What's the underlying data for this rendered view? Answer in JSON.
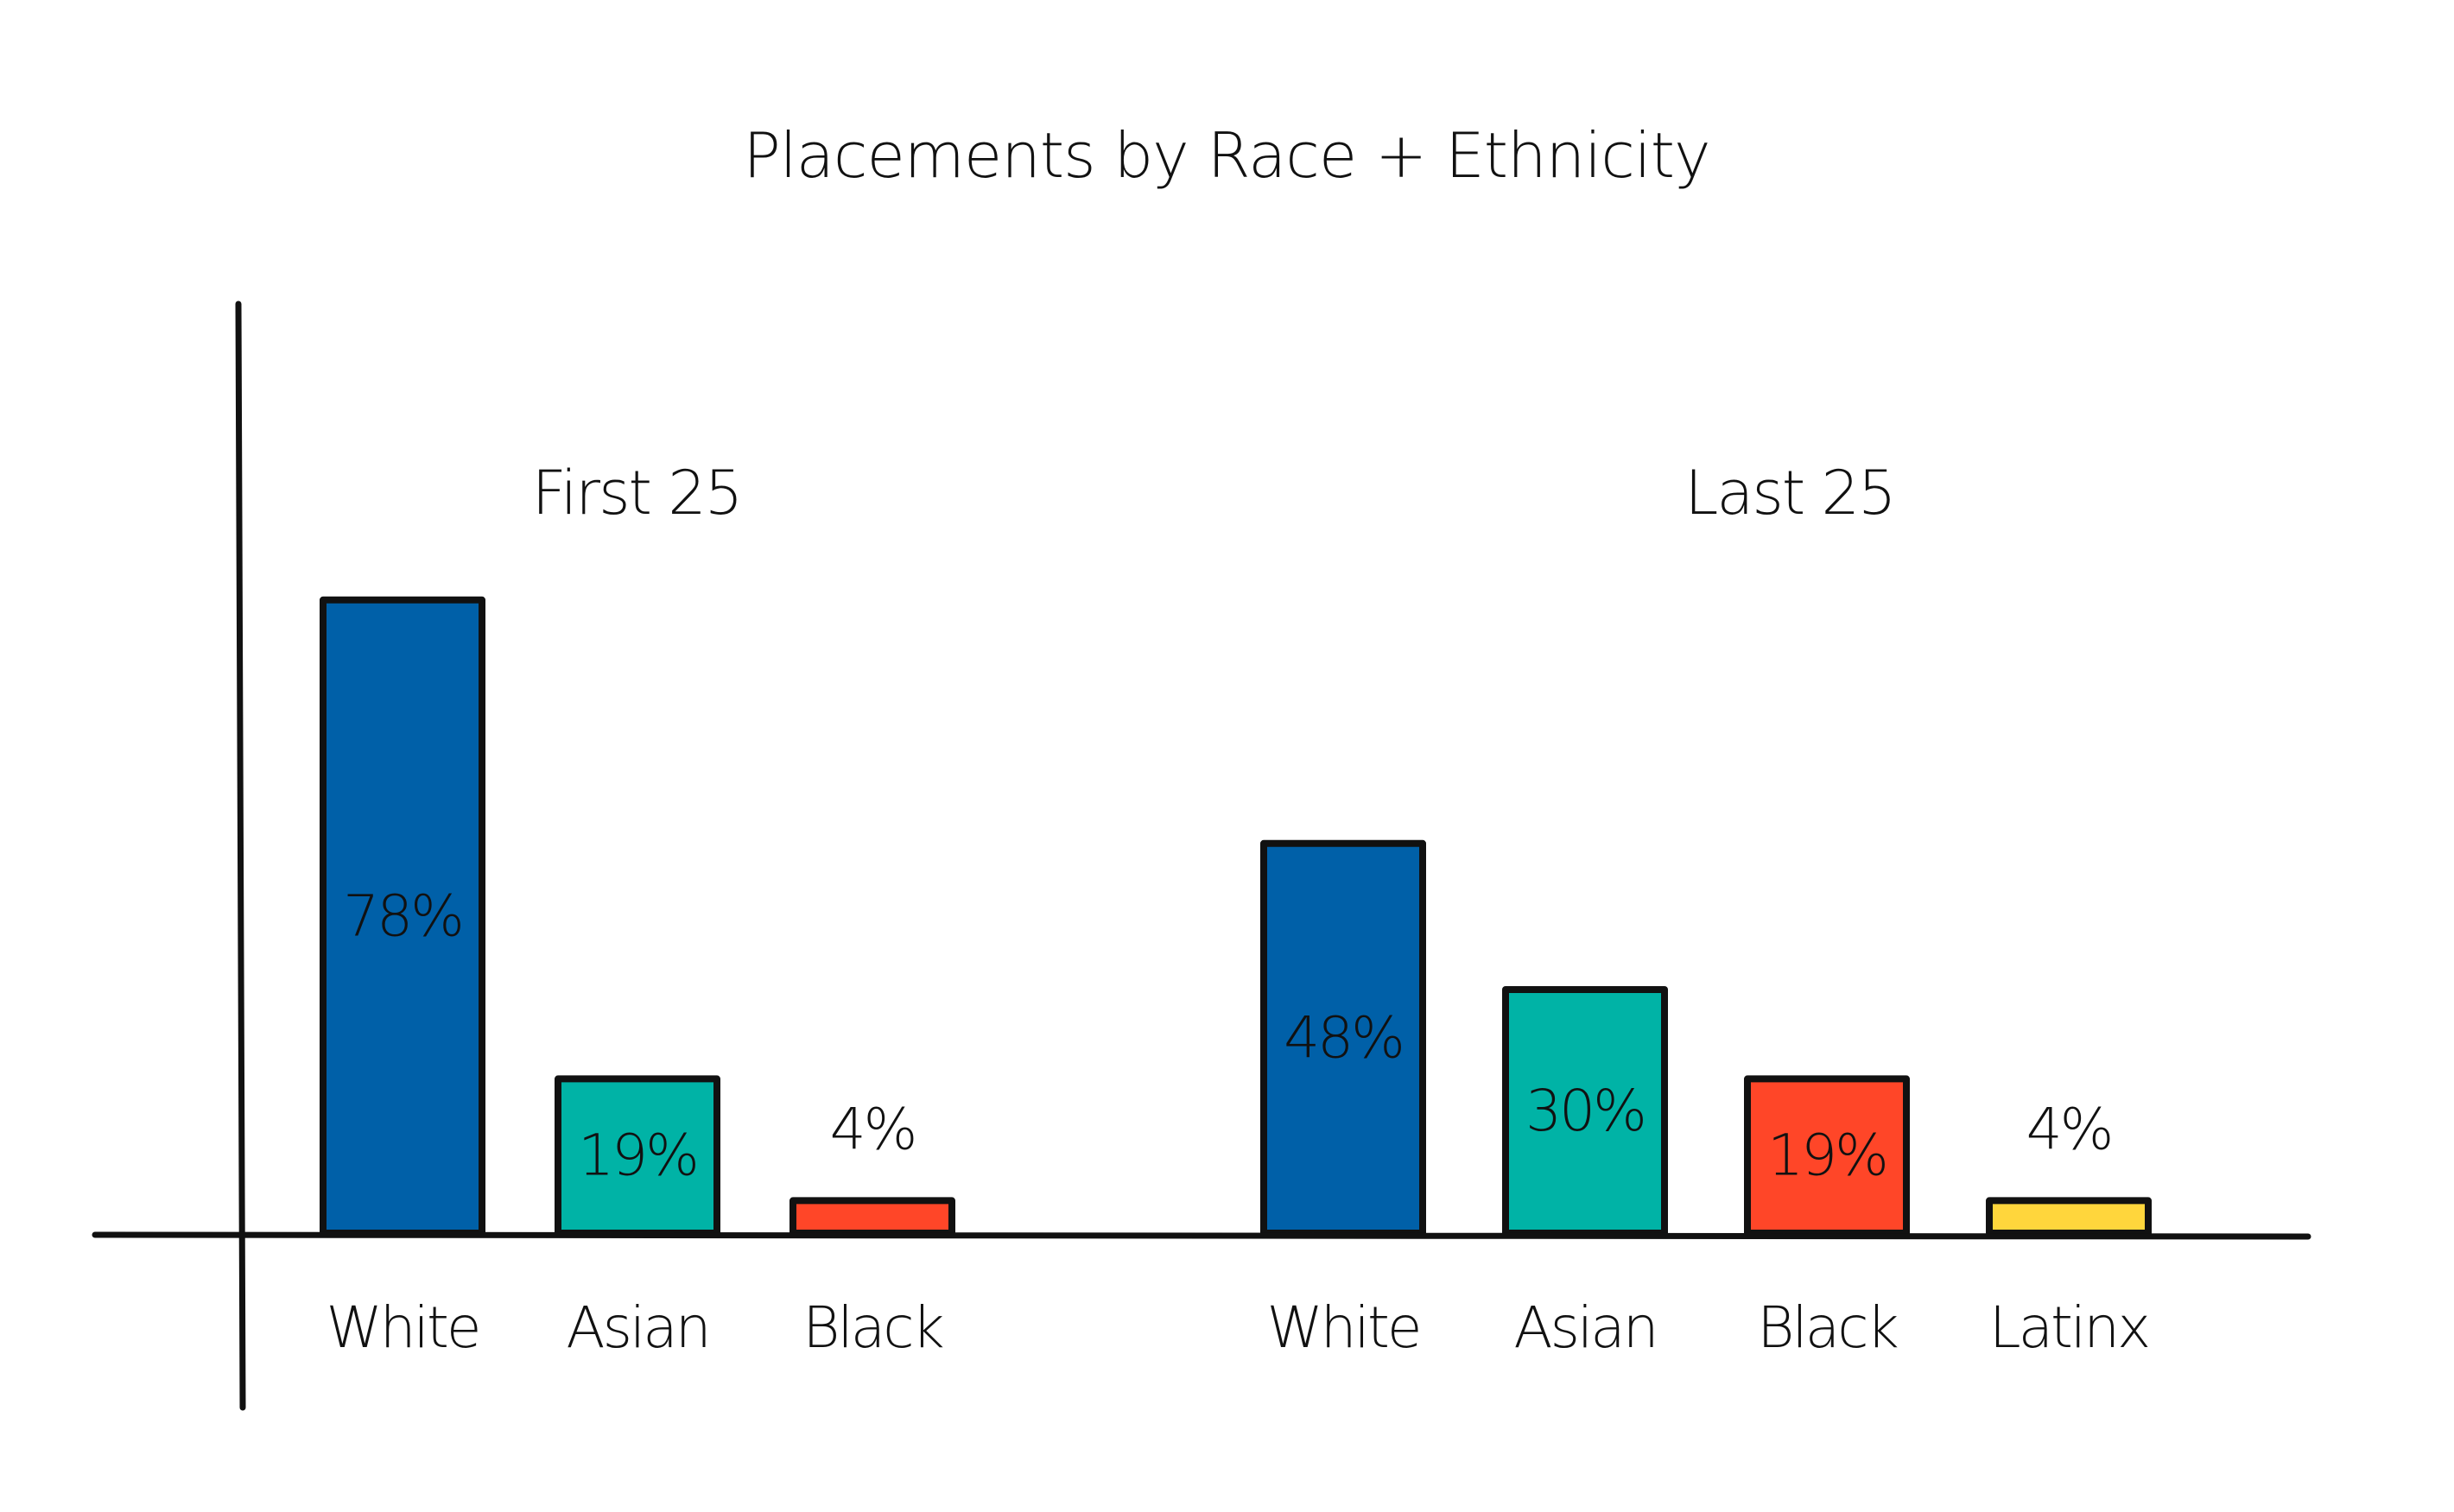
{
  "chart_data": {
    "type": "bar",
    "title": "Placements by Race + Ethnicity",
    "xlabel": "",
    "ylabel": "",
    "unit": "%",
    "grid": false,
    "groups": [
      {
        "name": "First 25",
        "bars": [
          {
            "category": "White",
            "value": 78,
            "label": "78%",
            "color": "#0060a8",
            "label_position": "inside"
          },
          {
            "category": "Asian",
            "value": 19,
            "label": "19%",
            "color": "#00b3a6",
            "label_position": "inside"
          },
          {
            "category": "Black",
            "value": 4,
            "label": "4%",
            "color": "#ff4628",
            "label_position": "above"
          }
        ]
      },
      {
        "name": "Last 25",
        "bars": [
          {
            "category": "White",
            "value": 48,
            "label": "48%",
            "color": "#0060a8",
            "label_position": "inside"
          },
          {
            "category": "Asian",
            "value": 30,
            "label": "30%",
            "color": "#00b3a6",
            "label_position": "inside"
          },
          {
            "category": "Black",
            "value": 19,
            "label": "19%",
            "color": "#ff4628",
            "label_position": "inside"
          },
          {
            "category": "Latinx",
            "value": 4,
            "label": "4%",
            "color": "#ffd63c",
            "label_position": "above"
          }
        ]
      }
    ]
  }
}
